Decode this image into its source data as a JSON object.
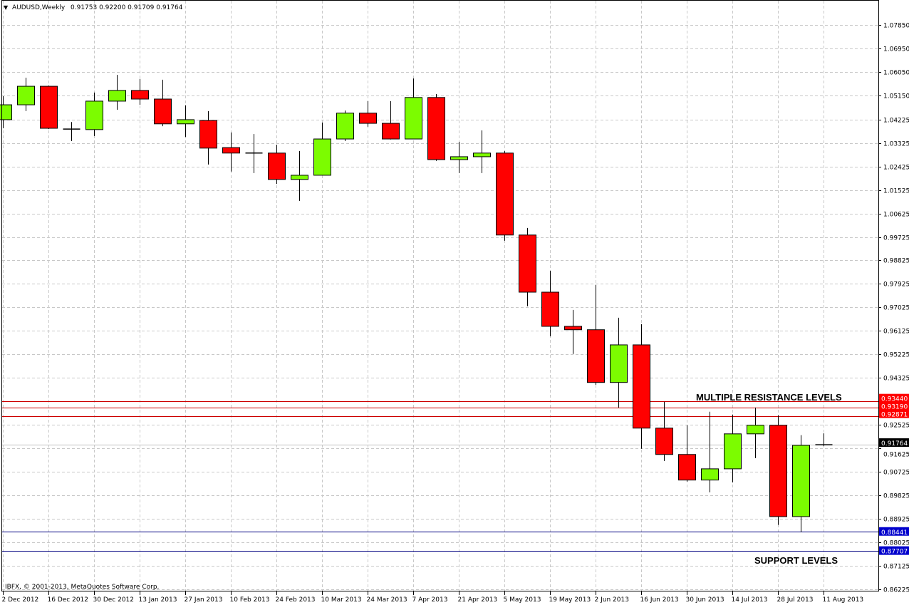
{
  "header": {
    "symbol": "AUDUSD,Weekly",
    "ohlc": "0.91753 0.92200 0.91709 0.91764"
  },
  "copyright": "IBFX, © 2001-2013, MetaQuotes Software Corp.",
  "annotations": {
    "resistance": "MULTIPLE RESISTANCE LEVELS",
    "support": "SUPPORT LEVELS"
  },
  "colors": {
    "bull": "#7cfc00",
    "bear": "#ff0000",
    "resistance": "#cc0000",
    "support": "#000080",
    "grid": "#c8c8c8",
    "current": "#000000"
  },
  "chart_data": {
    "type": "candlestick",
    "title": "AUDUSD,Weekly",
    "ylim": [
      0.8585,
      1.088
    ],
    "grid": true,
    "y_ticks": [
      "1.07850",
      "1.06950",
      "1.06050",
      "1.05150",
      "1.04225",
      "1.03325",
      "1.02425",
      "1.01525",
      "1.00625",
      "0.99725",
      "0.98825",
      "0.97925",
      "0.97025",
      "0.96125",
      "0.95225",
      "0.94325",
      "0.92525",
      "0.91625",
      "0.90725",
      "0.89825",
      "0.88925",
      "0.88025",
      "0.87125",
      "0.86225"
    ],
    "x_ticks": [
      "2 Dec 2012",
      "16 Dec 2012",
      "30 Dec 2012",
      "13 Jan 2013",
      "27 Jan 2013",
      "10 Feb 2013",
      "24 Feb 2013",
      "10 Mar 2013",
      "24 Mar 2013",
      "7 Apr 2013",
      "21 Apr 2013",
      "5 May 2013",
      "19 May 2013",
      "2 Jun 2013",
      "16 Jun 2013",
      "30 Jun 2013",
      "14 Jul 2013",
      "28 Jul 2013",
      "11 Aug 2013"
    ],
    "candles": [
      {
        "week": "2 Dec 2012",
        "o": 1.0422,
        "h": 1.0512,
        "l": 1.0389,
        "c": 1.0479
      },
      {
        "week": "9 Dec 2012",
        "o": 1.0479,
        "h": 1.0583,
        "l": 1.0455,
        "c": 1.055
      },
      {
        "week": "16 Dec 2012",
        "o": 1.055,
        "h": 1.0553,
        "l": 1.0386,
        "c": 1.0389
      },
      {
        "week": "23 Dec 2012",
        "o": 1.0386,
        "h": 1.0413,
        "l": 1.034,
        "c": 1.0386
      },
      {
        "week": "30 Dec 2012",
        "o": 1.0384,
        "h": 1.0526,
        "l": 1.0359,
        "c": 1.0493
      },
      {
        "week": "6 Jan 2013",
        "o": 1.0493,
        "h": 1.0594,
        "l": 1.046,
        "c": 1.0534
      },
      {
        "week": "13 Jan 2013",
        "o": 1.0534,
        "h": 1.0578,
        "l": 1.0479,
        "c": 1.0501
      },
      {
        "week": "20 Jan 2013",
        "o": 1.0501,
        "h": 1.0575,
        "l": 1.0397,
        "c": 1.0406
      },
      {
        "week": "27 Jan 2013",
        "o": 1.0406,
        "h": 1.0477,
        "l": 1.0356,
        "c": 1.0422
      },
      {
        "week": "3 Feb 2013",
        "o": 1.0419,
        "h": 1.0455,
        "l": 1.025,
        "c": 1.0313
      },
      {
        "week": "10 Feb 2013",
        "o": 1.0315,
        "h": 1.0373,
        "l": 1.0223,
        "c": 1.0294
      },
      {
        "week": "17 Feb 2013",
        "o": 1.0294,
        "h": 1.0367,
        "l": 1.0217,
        "c": 1.0294
      },
      {
        "week": "24 Feb 2013",
        "o": 1.0294,
        "h": 1.0326,
        "l": 1.0176,
        "c": 1.0193
      },
      {
        "week": "3 Mar 2013",
        "o": 1.0193,
        "h": 1.0302,
        "l": 1.0111,
        "c": 1.0209
      },
      {
        "week": "10 Mar 2013",
        "o": 1.0209,
        "h": 1.0411,
        "l": 1.0209,
        "c": 1.0348
      },
      {
        "week": "17 Mar 2013",
        "o": 1.0348,
        "h": 1.0457,
        "l": 1.034,
        "c": 1.0447
      },
      {
        "week": "24 Mar 2013",
        "o": 1.0447,
        "h": 1.0493,
        "l": 1.0395,
        "c": 1.0408
      },
      {
        "week": "31 Mar 2013",
        "o": 1.0408,
        "h": 1.0493,
        "l": 1.0346,
        "c": 1.0348
      },
      {
        "week": "7 Apr 2013",
        "o": 1.0348,
        "h": 1.058,
        "l": 1.0348,
        "c": 1.0507
      },
      {
        "week": "14 Apr 2013",
        "o": 1.0507,
        "h": 1.052,
        "l": 1.0264,
        "c": 1.0269
      },
      {
        "week": "21 Apr 2013",
        "o": 1.0269,
        "h": 1.0337,
        "l": 1.0217,
        "c": 1.028
      },
      {
        "week": "28 Apr 2013",
        "o": 1.028,
        "h": 1.0381,
        "l": 1.0217,
        "c": 1.0294
      },
      {
        "week": "5 May 2013",
        "o": 1.0294,
        "h": 1.0302,
        "l": 0.9958,
        "c": 0.998
      },
      {
        "week": "12 May 2013",
        "o": 0.998,
        "h": 1.0007,
        "l": 0.9707,
        "c": 0.9761
      },
      {
        "week": "19 May 2013",
        "o": 0.9761,
        "h": 0.9843,
        "l": 0.9592,
        "c": 0.963
      },
      {
        "week": "26 May 2013",
        "o": 0.963,
        "h": 0.9693,
        "l": 0.9524,
        "c": 0.9617
      },
      {
        "week": "2 Jun 2013",
        "o": 0.9617,
        "h": 0.9789,
        "l": 0.9406,
        "c": 0.9415
      },
      {
        "week": "9 Jun 2013",
        "o": 0.9415,
        "h": 0.9663,
        "l": 0.9319,
        "c": 0.9559
      },
      {
        "week": "16 Jun 2013",
        "o": 0.9559,
        "h": 0.9638,
        "l": 0.9161,
        "c": 0.924
      },
      {
        "week": "23 Jun 2013",
        "o": 0.924,
        "h": 0.9341,
        "l": 0.9114,
        "c": 0.9139
      },
      {
        "week": "30 Jun 2013",
        "o": 0.9139,
        "h": 0.9251,
        "l": 0.9035,
        "c": 0.9041
      },
      {
        "week": "7 Jul 2013",
        "o": 0.9041,
        "h": 0.9303,
        "l": 0.8994,
        "c": 0.9084
      },
      {
        "week": "14 Jul 2013",
        "o": 0.9084,
        "h": 0.9292,
        "l": 0.9032,
        "c": 0.9218
      },
      {
        "week": "21 Jul 2013",
        "o": 0.9218,
        "h": 0.9319,
        "l": 0.9125,
        "c": 0.9251
      },
      {
        "week": "28 Jul 2013",
        "o": 0.9251,
        "h": 0.9289,
        "l": 0.8869,
        "c": 0.8901
      },
      {
        "week": "4 Aug 2013",
        "o": 0.8901,
        "h": 0.9213,
        "l": 0.8841,
        "c": 0.9174
      },
      {
        "week": "11 Aug 2013",
        "o": 0.91753,
        "h": 0.922,
        "l": 0.91709,
        "c": 0.91764
      }
    ],
    "current_price": "0.91764",
    "resistance_levels": [
      "0.93440",
      "0.93190",
      "0.92871"
    ],
    "support_levels": [
      "0.88441",
      "0.87707"
    ]
  }
}
